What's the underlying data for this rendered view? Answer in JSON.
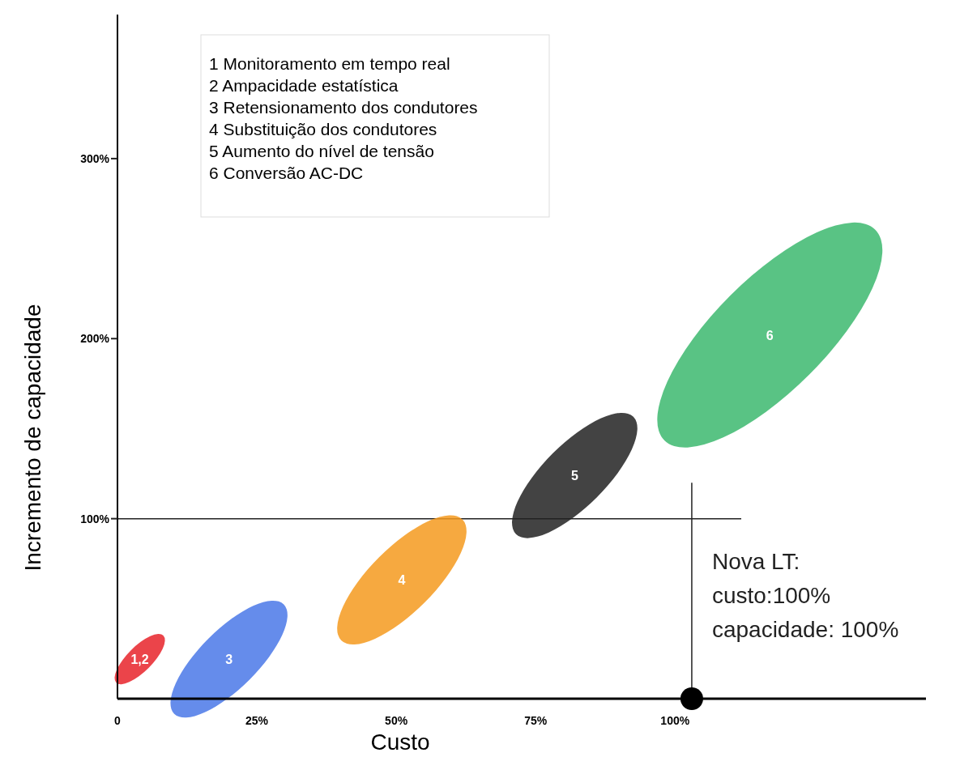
{
  "chart_data": {
    "type": "bubble",
    "xlabel": "Custo",
    "ylabel": "Incremento de capacidade",
    "xlim": [
      0,
      145
    ],
    "ylim": [
      0,
      380
    ],
    "xticks": [
      0,
      {
        "value": 25,
        "label": "25%"
      },
      {
        "value": 50,
        "label": "50%"
      },
      {
        "value": 75,
        "label": "75%"
      },
      {
        "value": 100,
        "label": "100%"
      }
    ],
    "yticks": [
      {
        "value": 100,
        "label": "100%"
      },
      {
        "value": 200,
        "label": "200%"
      },
      {
        "value": 300,
        "label": "300%"
      }
    ],
    "series": [
      {
        "x": [
          4,
          20,
          51,
          82,
          117
        ],
        "values": [
          22,
          22,
          66,
          124,
          202
        ],
        "sizes": [
          0.05,
          0.27,
          0.33,
          0.31,
          1
        ],
        "colors": [
          "#e8232a",
          "#4a78e8",
          "#f59a1e",
          "#222222",
          "#3cb96e"
        ]
      },
      {
        "type": "scatter",
        "x": [
          103
        ],
        "values": [
          0
        ],
        "color": "#000000"
      }
    ],
    "ref_lines": [
      {
        "axis": "y",
        "value": 100
      },
      {
        "axis": "x",
        "value": 103
      }
    ],
    "annotations": [
      "1 Monitoramento em tempo real",
      "2 Ampacidade estatística",
      "3 Retensionamento dos condutores",
      "4 Substituição dos condutores",
      "5 Aumento do nível de tensão",
      "6 Conversão AC-DC",
      {
        "text": "1,2",
        "x": 4,
        "y": 22
      },
      {
        "text": "3",
        "x": 20,
        "y": 22
      },
      {
        "text": "4",
        "x": 51,
        "y": 66
      },
      {
        "text": "5",
        "x": 82,
        "y": 124
      },
      {
        "text": "6",
        "x": 117,
        "y": 202
      },
      {
        "text": "Nova LT:\ncusto:100%\ncapacidade: 100%",
        "x": 103,
        "y": 0
      }
    ]
  }
}
